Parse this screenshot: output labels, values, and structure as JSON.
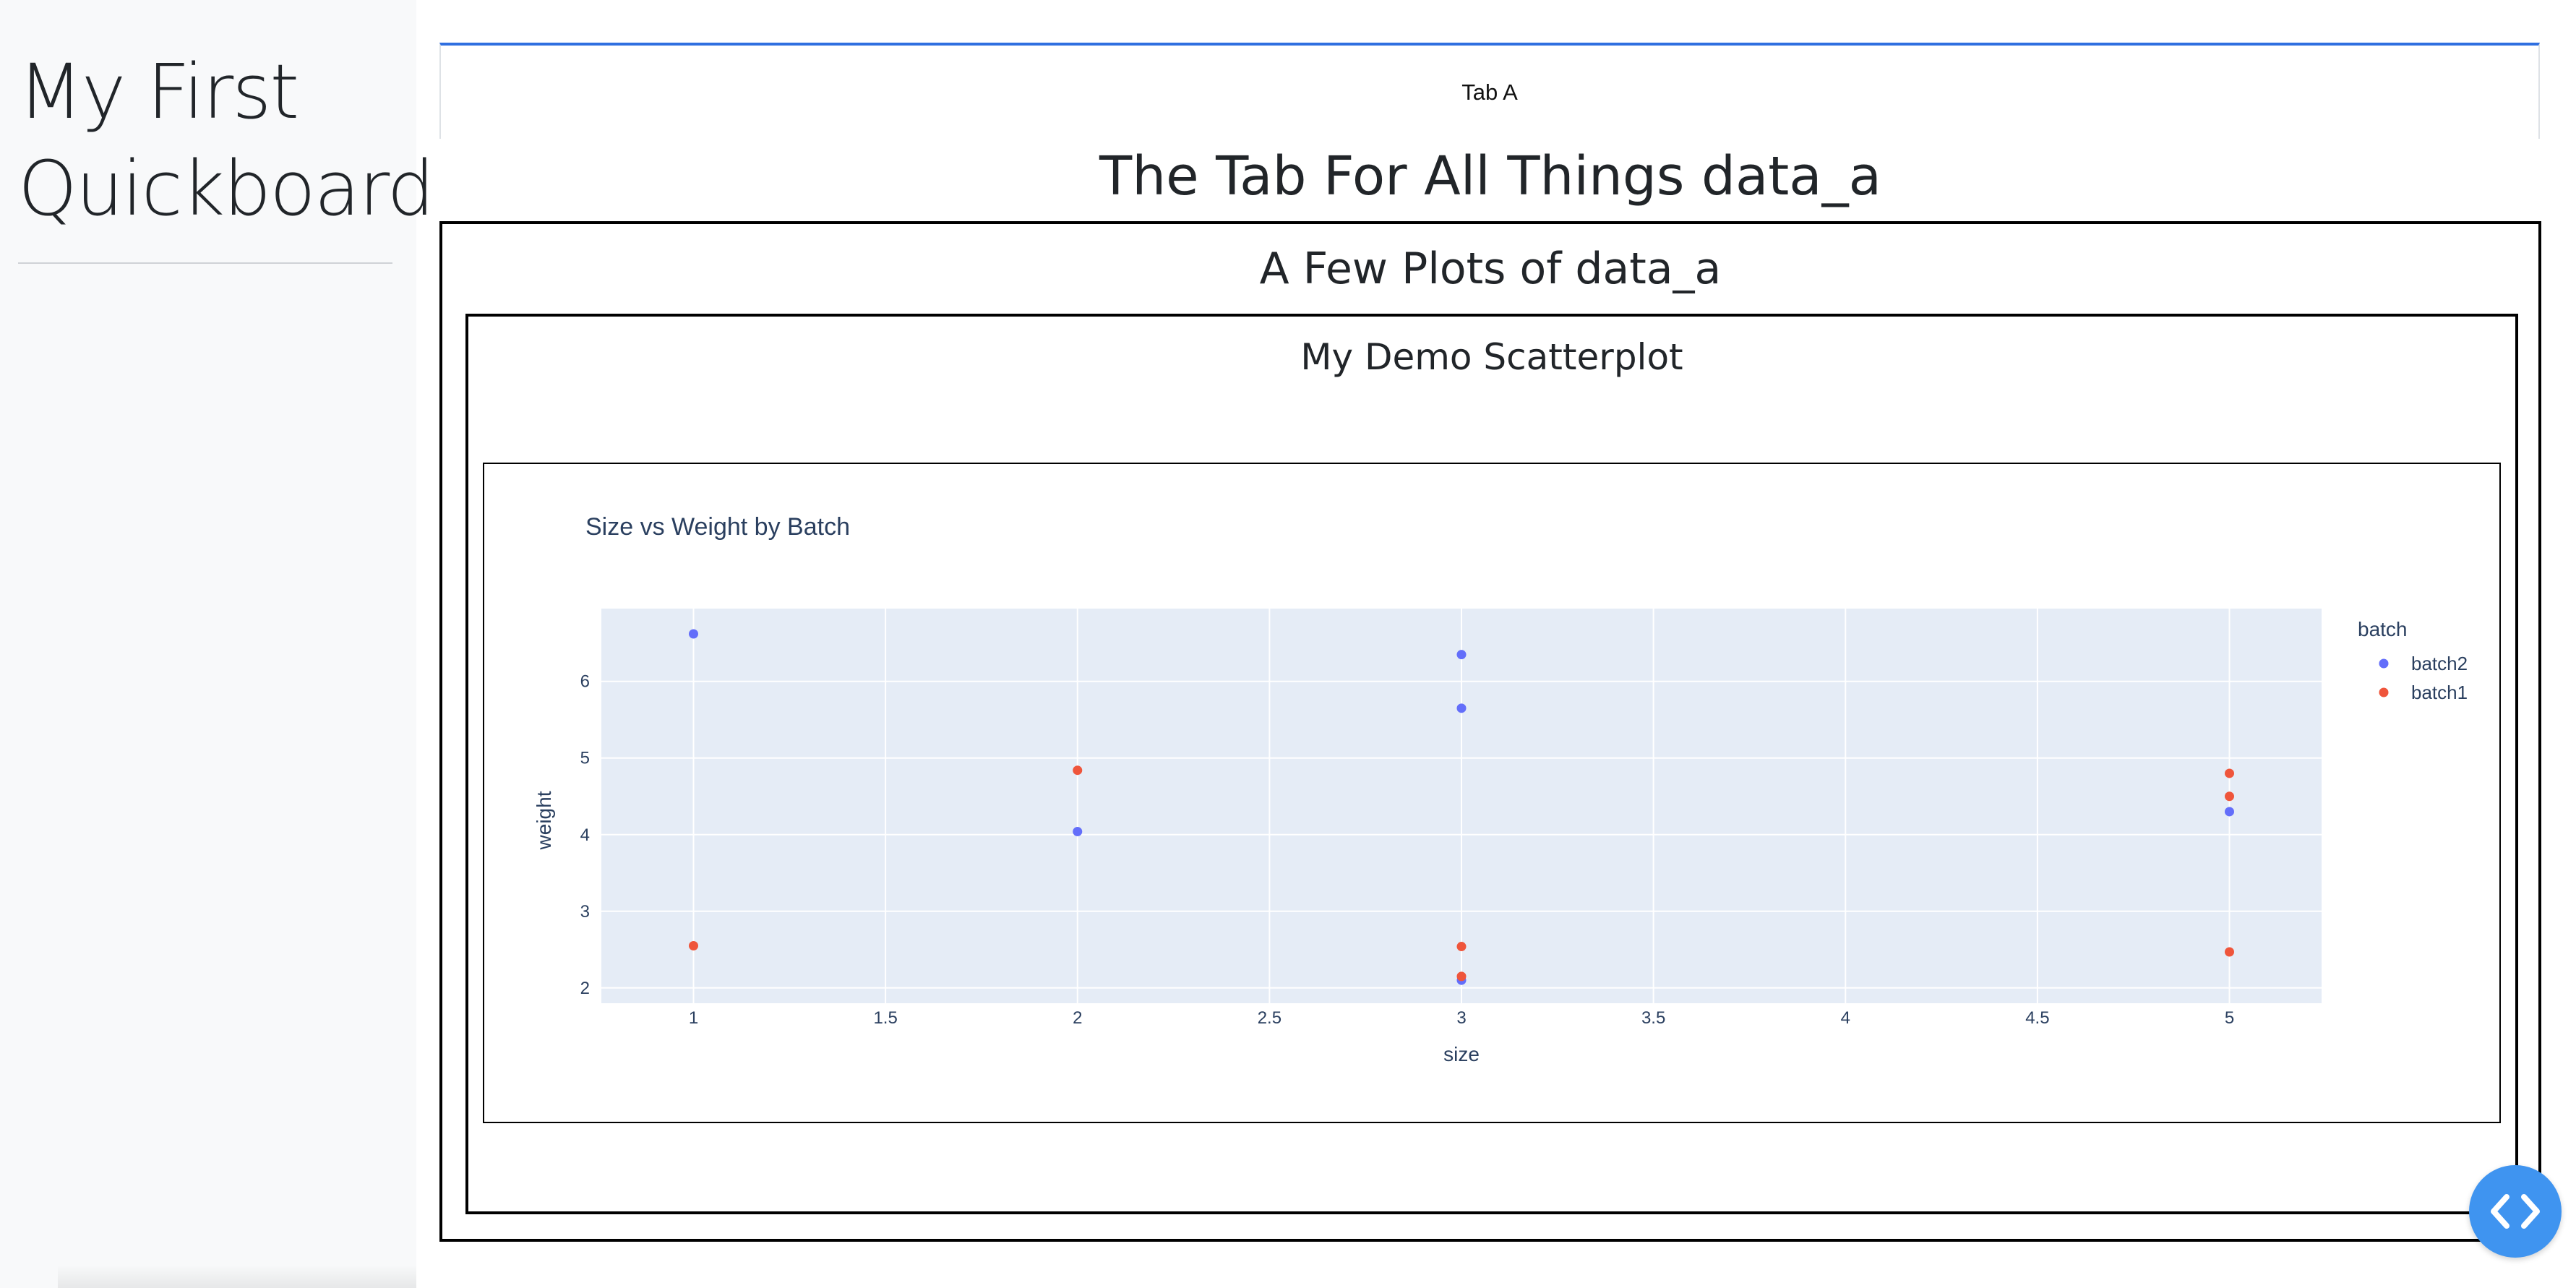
{
  "sidebar": {
    "title": "My First Quickboard"
  },
  "tabs": [
    {
      "label": "Tab A",
      "active": true
    }
  ],
  "main": {
    "tab_heading": "The Tab For All Things data_a",
    "section_heading": "A Few Plots of data_a",
    "card_heading": "My Demo Scatterplot"
  },
  "chart_data": {
    "type": "scatter",
    "title": "Size vs Weight by Batch",
    "xlabel": "size",
    "ylabel": "weight",
    "xlim": [
      0.76,
      5.24
    ],
    "ylim": [
      1.8,
      6.95
    ],
    "xticks": [
      "1",
      "1.5",
      "2",
      "2.5",
      "3",
      "3.5",
      "4",
      "4.5",
      "5"
    ],
    "yticks": [
      "2",
      "3",
      "4",
      "5",
      "6"
    ],
    "grid": true,
    "plot_background": "#e5ecf6",
    "legend": {
      "title": "batch",
      "placement": "right"
    },
    "series": [
      {
        "name": "batch2",
        "color": "#636efa",
        "points": [
          [
            1,
            6.62
          ],
          [
            2,
            4.04
          ],
          [
            3,
            6.35
          ],
          [
            3,
            5.65
          ],
          [
            3,
            2.1
          ],
          [
            5,
            4.3
          ]
        ]
      },
      {
        "name": "batch1",
        "color": "#ef553b",
        "points": [
          [
            1,
            2.55
          ],
          [
            2,
            4.84
          ],
          [
            3,
            2.54
          ],
          [
            3,
            2.15
          ],
          [
            5,
            4.8
          ],
          [
            5,
            4.5
          ],
          [
            5,
            2.47
          ]
        ]
      }
    ]
  },
  "icons": {
    "fab": "code-chevrons-icon"
  },
  "colors": {
    "accent": "#2f6fe0",
    "fab": "#3f94f0"
  }
}
